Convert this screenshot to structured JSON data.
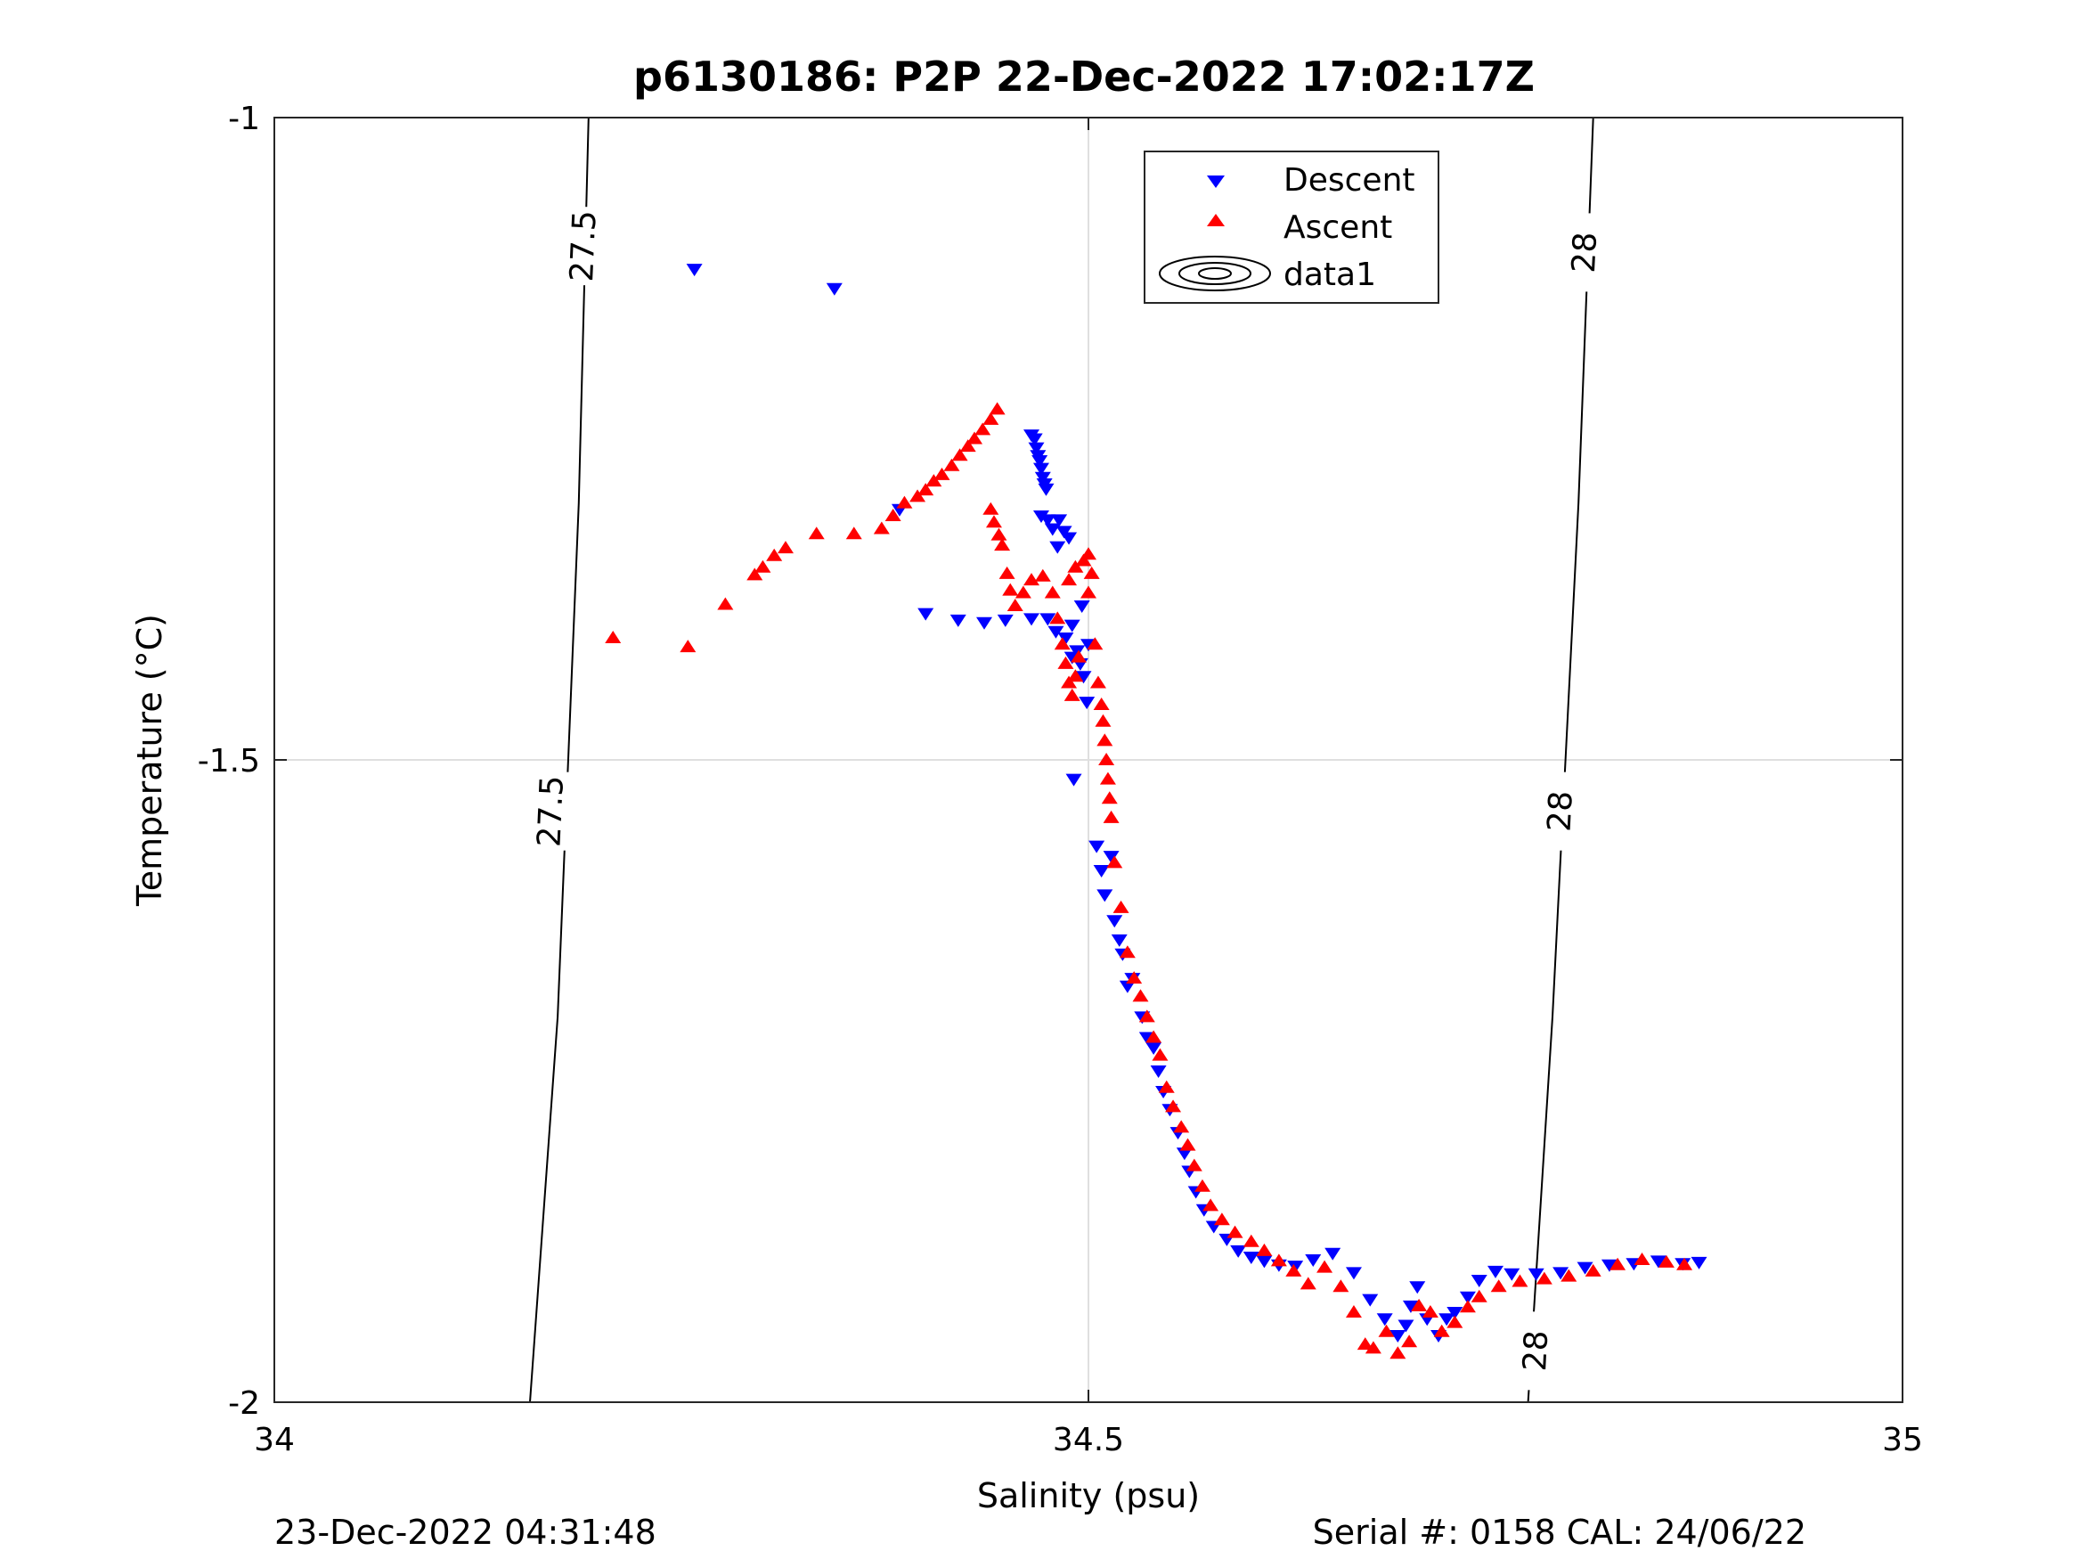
{
  "chart_data": {
    "type": "scatter",
    "title": "p6130186: P2P 22-Dec-2022 17:02:17Z",
    "xlabel": "Salinity (psu)",
    "ylabel": "Temperature (°C)",
    "xlim": [
      34,
      35
    ],
    "ylim": [
      -2,
      -1
    ],
    "xticks": [
      34,
      34.5,
      35
    ],
    "yticks": [
      -2,
      -1.5,
      -1
    ],
    "xtick_labels": [
      "34",
      "34.5",
      "35"
    ],
    "ytick_labels": [
      "-2",
      "-1.5",
      "-1"
    ],
    "grid": true,
    "legend_position": "top-center",
    "footer_left": "23-Dec-2022 04:31:48",
    "footer_right": "Serial #: 0158  CAL: 24/06/22",
    "series": [
      {
        "name": "Descent",
        "marker": "triangle-down",
        "color": "#0000ff",
        "points": [
          [
            34.258,
            -1.118
          ],
          [
            34.344,
            -1.133
          ],
          [
            34.384,
            -1.305
          ],
          [
            34.4,
            -1.386
          ],
          [
            34.42,
            -1.391
          ],
          [
            34.436,
            -1.393
          ],
          [
            34.449,
            -1.391
          ],
          [
            34.465,
            -1.39
          ],
          [
            34.465,
            -1.247
          ],
          [
            34.467,
            -1.25
          ],
          [
            34.468,
            -1.257
          ],
          [
            34.469,
            -1.263
          ],
          [
            34.47,
            -1.267
          ],
          [
            34.471,
            -1.273
          ],
          [
            34.472,
            -1.28
          ],
          [
            34.473,
            -1.285
          ],
          [
            34.474,
            -1.289
          ],
          [
            34.471,
            -1.31
          ],
          [
            34.475,
            -1.313
          ],
          [
            34.478,
            -1.32
          ],
          [
            34.482,
            -1.313
          ],
          [
            34.485,
            -1.322
          ],
          [
            34.481,
            -1.334
          ],
          [
            34.488,
            -1.327
          ],
          [
            34.475,
            -1.39
          ],
          [
            34.48,
            -1.4
          ],
          [
            34.486,
            -1.405
          ],
          [
            34.49,
            -1.395
          ],
          [
            34.493,
            -1.415
          ],
          [
            34.496,
            -1.38
          ],
          [
            34.49,
            -1.42
          ],
          [
            34.495,
            -1.425
          ],
          [
            34.5,
            -1.41
          ],
          [
            34.497,
            -1.435
          ],
          [
            34.499,
            -1.455
          ],
          [
            34.491,
            -1.515
          ],
          [
            34.505,
            -1.567
          ],
          [
            34.508,
            -1.586
          ],
          [
            34.51,
            -1.605
          ],
          [
            34.514,
            -1.575
          ],
          [
            34.516,
            -1.625
          ],
          [
            34.519,
            -1.64
          ],
          [
            34.521,
            -1.651
          ],
          [
            34.524,
            -1.676
          ],
          [
            34.527,
            -1.67
          ],
          [
            34.533,
            -1.7
          ],
          [
            34.536,
            -1.716
          ],
          [
            34.54,
            -1.724
          ],
          [
            34.543,
            -1.742
          ],
          [
            34.546,
            -1.758
          ],
          [
            34.55,
            -1.772
          ],
          [
            34.555,
            -1.79
          ],
          [
            34.559,
            -1.806
          ],
          [
            34.562,
            -1.82
          ],
          [
            34.566,
            -1.836
          ],
          [
            34.571,
            -1.85
          ],
          [
            34.577,
            -1.863
          ],
          [
            34.585,
            -1.873
          ],
          [
            34.592,
            -1.882
          ],
          [
            34.6,
            -1.887
          ],
          [
            34.608,
            -1.89
          ],
          [
            34.617,
            -1.893
          ],
          [
            34.627,
            -1.894
          ],
          [
            34.638,
            -1.889
          ],
          [
            34.65,
            -1.884
          ],
          [
            34.663,
            -1.899
          ],
          [
            34.673,
            -1.92
          ],
          [
            34.682,
            -1.935
          ],
          [
            34.69,
            -1.948
          ],
          [
            34.695,
            -1.94
          ],
          [
            34.698,
            -1.925
          ],
          [
            34.702,
            -1.91
          ],
          [
            34.708,
            -1.935
          ],
          [
            34.715,
            -1.948
          ],
          [
            34.72,
            -1.935
          ],
          [
            34.725,
            -1.93
          ],
          [
            34.733,
            -1.918
          ],
          [
            34.74,
            -1.905
          ],
          [
            34.75,
            -1.898
          ],
          [
            34.76,
            -1.9
          ],
          [
            34.775,
            -1.9
          ],
          [
            34.79,
            -1.899
          ],
          [
            34.805,
            -1.895
          ],
          [
            34.82,
            -1.893
          ],
          [
            34.835,
            -1.892
          ],
          [
            34.85,
            -1.89
          ],
          [
            34.865,
            -1.892
          ],
          [
            34.875,
            -1.891
          ]
        ]
      },
      {
        "name": "Ascent",
        "marker": "triangle-up",
        "color": "#ff0000",
        "points": [
          [
            34.208,
            -1.405
          ],
          [
            34.254,
            -1.412
          ],
          [
            34.277,
            -1.379
          ],
          [
            34.295,
            -1.356
          ],
          [
            34.3,
            -1.35
          ],
          [
            34.307,
            -1.341
          ],
          [
            34.314,
            -1.335
          ],
          [
            34.333,
            -1.324
          ],
          [
            34.356,
            -1.324
          ],
          [
            34.373,
            -1.32
          ],
          [
            34.38,
            -1.31
          ],
          [
            34.387,
            -1.3
          ],
          [
            34.395,
            -1.295
          ],
          [
            34.4,
            -1.29
          ],
          [
            34.405,
            -1.283
          ],
          [
            34.41,
            -1.278
          ],
          [
            34.416,
            -1.271
          ],
          [
            34.421,
            -1.263
          ],
          [
            34.426,
            -1.256
          ],
          [
            34.43,
            -1.25
          ],
          [
            34.435,
            -1.243
          ],
          [
            34.44,
            -1.235
          ],
          [
            34.444,
            -1.227
          ],
          [
            34.44,
            -1.305
          ],
          [
            34.442,
            -1.315
          ],
          [
            34.445,
            -1.325
          ],
          [
            34.447,
            -1.333
          ],
          [
            34.45,
            -1.355
          ],
          [
            34.452,
            -1.368
          ],
          [
            34.455,
            -1.38
          ],
          [
            34.46,
            -1.37
          ],
          [
            34.465,
            -1.36
          ],
          [
            34.472,
            -1.357
          ],
          [
            34.478,
            -1.37
          ],
          [
            34.481,
            -1.39
          ],
          [
            34.484,
            -1.41
          ],
          [
            34.486,
            -1.425
          ],
          [
            34.488,
            -1.44
          ],
          [
            34.49,
            -1.45
          ],
          [
            34.492,
            -1.435
          ],
          [
            34.494,
            -1.42
          ],
          [
            34.488,
            -1.36
          ],
          [
            34.492,
            -1.35
          ],
          [
            34.497,
            -1.345
          ],
          [
            34.5,
            -1.34
          ],
          [
            34.502,
            -1.355
          ],
          [
            34.5,
            -1.37
          ],
          [
            34.504,
            -1.41
          ],
          [
            34.506,
            -1.44
          ],
          [
            34.508,
            -1.457
          ],
          [
            34.509,
            -1.47
          ],
          [
            34.51,
            -1.485
          ],
          [
            34.511,
            -1.5
          ],
          [
            34.512,
            -1.515
          ],
          [
            34.513,
            -1.53
          ],
          [
            34.514,
            -1.545
          ],
          [
            34.516,
            -1.58
          ],
          [
            34.52,
            -1.615
          ],
          [
            34.524,
            -1.65
          ],
          [
            34.528,
            -1.67
          ],
          [
            34.532,
            -1.684
          ],
          [
            34.536,
            -1.7
          ],
          [
            34.54,
            -1.716
          ],
          [
            34.544,
            -1.73
          ],
          [
            34.548,
            -1.755
          ],
          [
            34.552,
            -1.77
          ],
          [
            34.557,
            -1.786
          ],
          [
            34.561,
            -1.8
          ],
          [
            34.565,
            -1.816
          ],
          [
            34.57,
            -1.832
          ],
          [
            34.575,
            -1.847
          ],
          [
            34.582,
            -1.858
          ],
          [
            34.59,
            -1.868
          ],
          [
            34.6,
            -1.875
          ],
          [
            34.608,
            -1.882
          ],
          [
            34.617,
            -1.89
          ],
          [
            34.626,
            -1.898
          ],
          [
            34.635,
            -1.908
          ],
          [
            34.645,
            -1.895
          ],
          [
            34.655,
            -1.91
          ],
          [
            34.663,
            -1.93
          ],
          [
            34.67,
            -1.955
          ],
          [
            34.675,
            -1.958
          ],
          [
            34.683,
            -1.945
          ],
          [
            34.69,
            -1.962
          ],
          [
            34.697,
            -1.953
          ],
          [
            34.703,
            -1.925
          ],
          [
            34.71,
            -1.93
          ],
          [
            34.717,
            -1.945
          ],
          [
            34.725,
            -1.938
          ],
          [
            34.733,
            -1.926
          ],
          [
            34.74,
            -1.918
          ],
          [
            34.752,
            -1.91
          ],
          [
            34.765,
            -1.906
          ],
          [
            34.78,
            -1.904
          ],
          [
            34.795,
            -1.902
          ],
          [
            34.81,
            -1.898
          ],
          [
            34.825,
            -1.893
          ],
          [
            34.84,
            -1.889
          ],
          [
            34.855,
            -1.891
          ],
          [
            34.866,
            -1.893
          ]
        ]
      }
    ],
    "contours": [
      {
        "label": "27.5",
        "points": [
          [
            34.193,
            -1.0
          ],
          [
            34.187,
            -1.3
          ],
          [
            34.174,
            -1.7
          ],
          [
            34.157,
            -2.0
          ]
        ],
        "label_positions": [
          [
            34.19,
            -1.1
          ],
          [
            34.17,
            -1.54
          ]
        ]
      },
      {
        "label": "28",
        "points": [
          [
            34.81,
            -1.0
          ],
          [
            34.801,
            -1.3
          ],
          [
            34.785,
            -1.7
          ],
          [
            34.77,
            -2.0
          ]
        ],
        "label_positions": [
          [
            34.805,
            -1.105
          ],
          [
            34.79,
            -1.54
          ],
          [
            34.775,
            -1.96
          ]
        ]
      }
    ],
    "legend_entries": [
      "Descent",
      "Ascent",
      "data1"
    ]
  }
}
